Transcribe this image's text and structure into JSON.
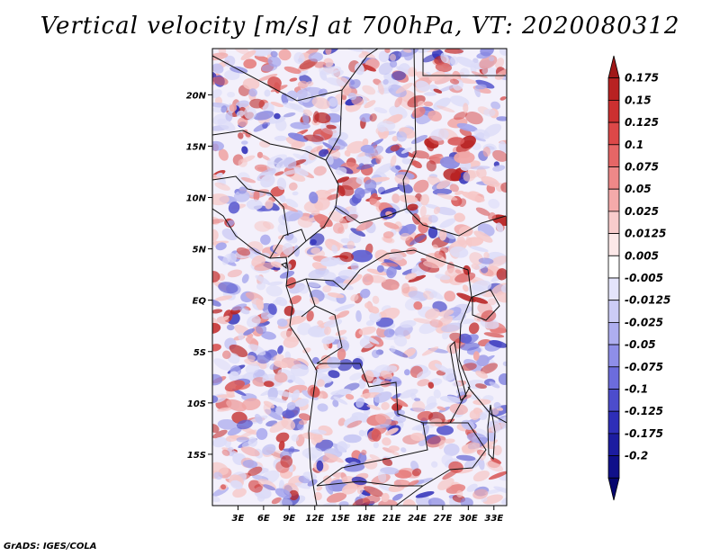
{
  "title": "Vertical velocity [m/s] at 700hPa, VT: 2020080312",
  "footer": "GrADS: IGES/COLA",
  "map": {
    "lat_labels": [
      "20N",
      "15N",
      "10N",
      "5N",
      "EQ",
      "5S",
      "10S",
      "15S"
    ],
    "lat_values": [
      20,
      15,
      10,
      5,
      0,
      -5,
      -10,
      -15
    ],
    "lon_labels": [
      "3E",
      "6E",
      "9E",
      "12E",
      "15E",
      "18E",
      "21E",
      "24E",
      "27E",
      "30E",
      "33E"
    ],
    "lon_values": [
      3,
      6,
      9,
      12,
      15,
      18,
      21,
      24,
      27,
      30,
      33
    ],
    "lat_range": [
      -20,
      24.5
    ],
    "lon_range": [
      0,
      34.5
    ]
  },
  "colorbar": {
    "labels": [
      "0.175",
      "0.15",
      "0.125",
      "0.1",
      "0.075",
      "0.05",
      "0.025",
      "0.0125",
      "0.005",
      "-0.005",
      "-0.0125",
      "-0.025",
      "-0.05",
      "-0.075",
      "-0.1",
      "-0.125",
      "-0.175",
      "-0.2"
    ],
    "colors": [
      "#a01818",
      "#b82222",
      "#cc3030",
      "#dc4848",
      "#e66666",
      "#ee8888",
      "#f4aaaa",
      "#f8cccc",
      "#fce8e8",
      "#ffffff",
      "#e4e4fb",
      "#ccccf6",
      "#aeaef0",
      "#8e8ee8",
      "#6c6cdc",
      "#4c4ccc",
      "#2e2eb8",
      "#1c1ca0",
      "#10108a",
      "#06066e"
    ]
  },
  "colors": {
    "positive": "#c0282a",
    "negative": "#2a2ac0",
    "frame": "#000000"
  }
}
